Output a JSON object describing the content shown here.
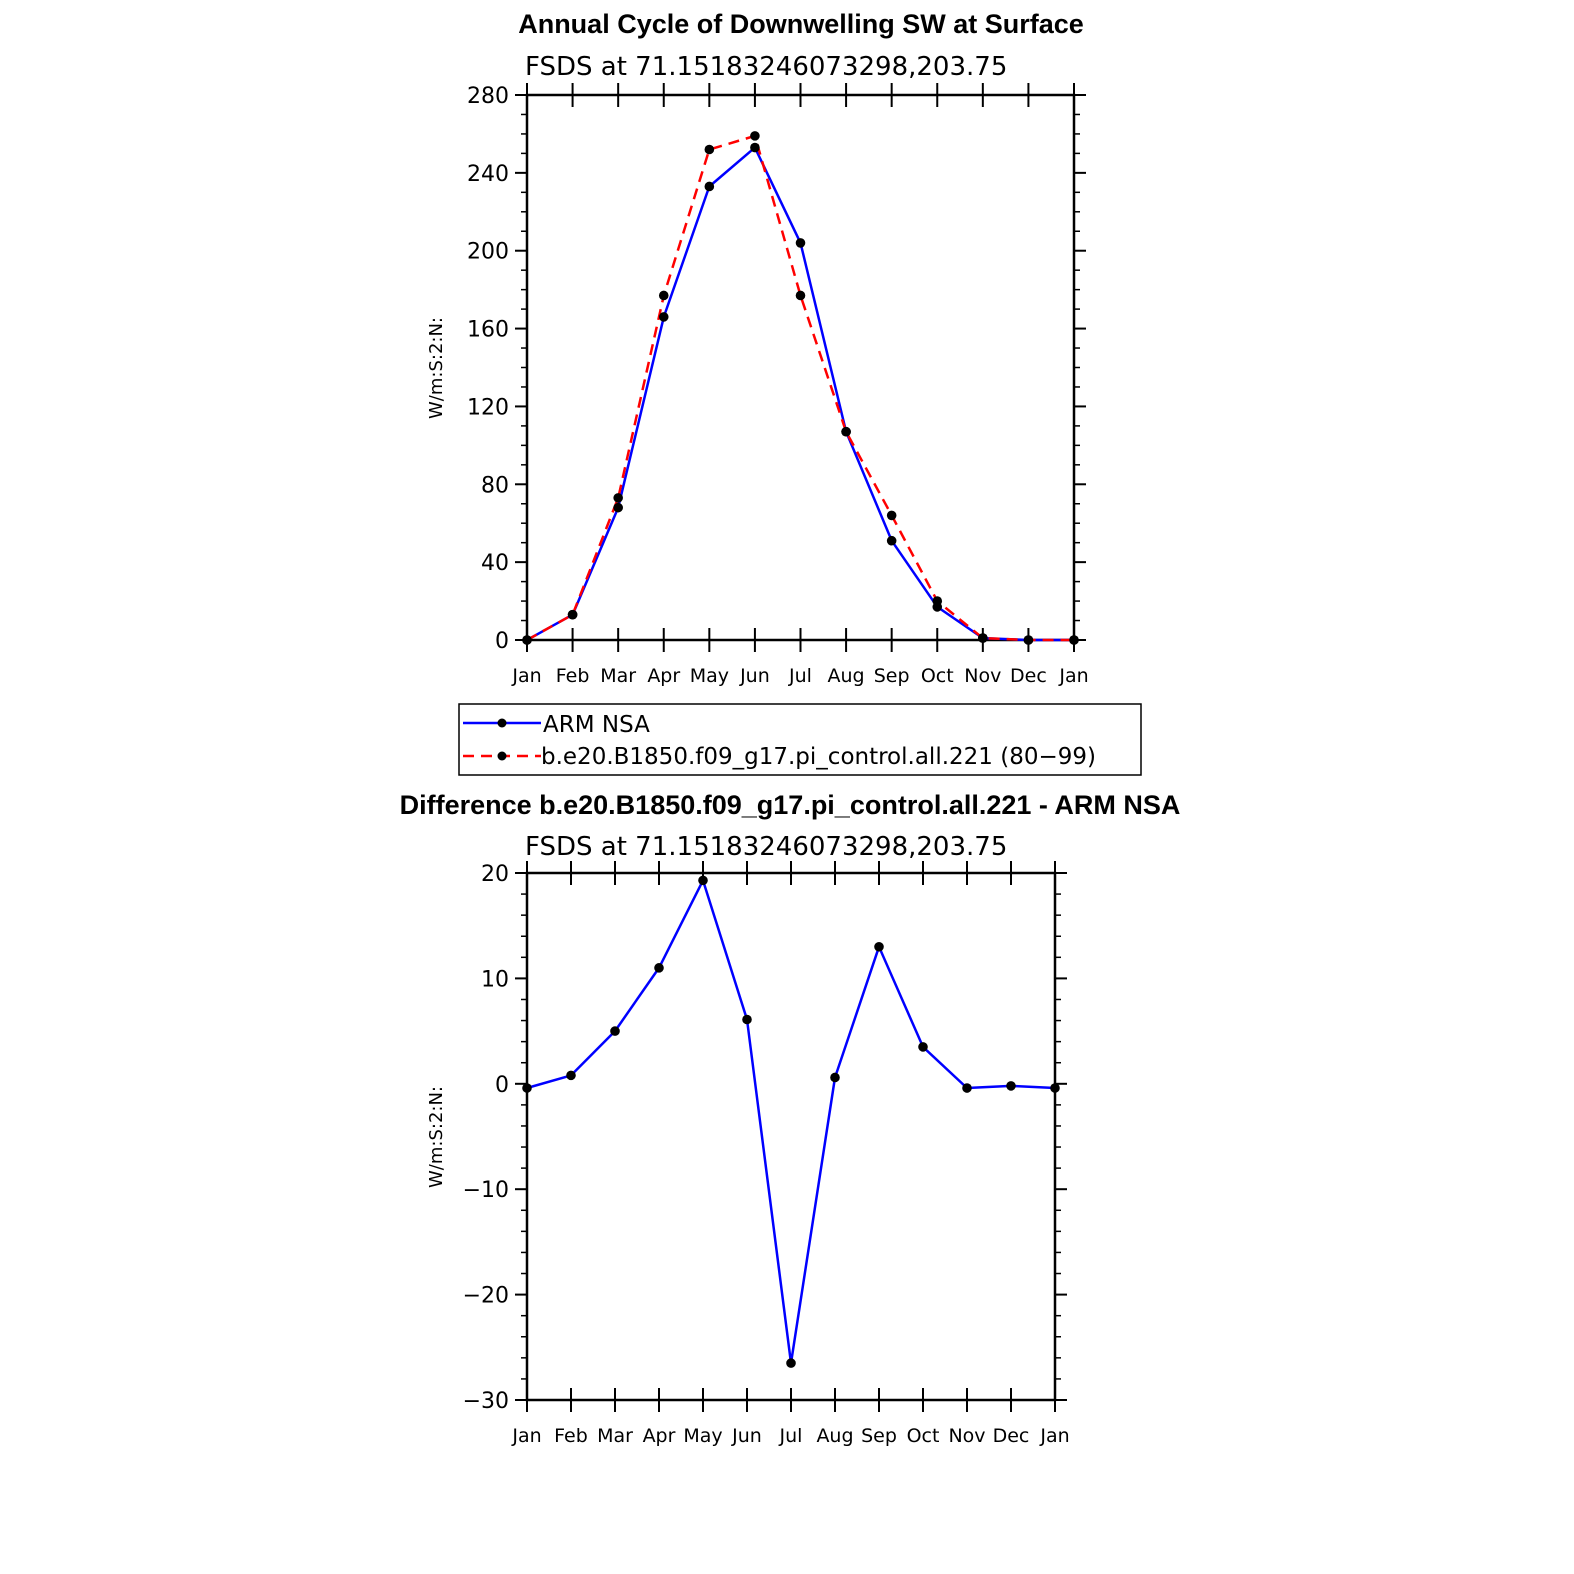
{
  "chart_data": [
    {
      "type": "line",
      "title": "Annual Cycle of Downwelling SW at Surface",
      "subtitle": "FSDS at 71.15183246073298,203.75",
      "ylabel": "W/m:S:2:N:",
      "xlabel": "",
      "ylim": [
        0,
        280
      ],
      "yticks": [
        "0",
        "40",
        "80",
        "120",
        "160",
        "200",
        "240",
        "280"
      ],
      "y_minor_step": 10,
      "categories": [
        "Jan",
        "Feb",
        "Mar",
        "Apr",
        "May",
        "Jun",
        "Jul",
        "Aug",
        "Sep",
        "Oct",
        "Nov",
        "Dec",
        "Jan"
      ],
      "grid": false,
      "legend_position": "bottom",
      "series": [
        {
          "name": "ARM NSA",
          "color": "#0000ff",
          "dash": "solid",
          "values": [
            0,
            13,
            68,
            166,
            233,
            253,
            204,
            107,
            51,
            17,
            1,
            0,
            0
          ]
        },
        {
          "name": "b.e20.B1850.f09_g17.pi_control.all.221 (80−99)",
          "color": "#ff0000",
          "dash": "dashed",
          "values": [
            0,
            13,
            73,
            177,
            252,
            259,
            177,
            107,
            64,
            20,
            1,
            0,
            0
          ]
        }
      ]
    },
    {
      "type": "line",
      "title": "Difference b.e20.B1850.f09_g17.pi_control.all.221 - ARM NSA",
      "subtitle": "FSDS at 71.15183246073298,203.75",
      "ylabel": "W/m:S:2:N:",
      "xlabel": "",
      "ylim": [
        -30,
        20
      ],
      "yticks": [
        "−30",
        "−20",
        "−10",
        "0",
        "10",
        "20"
      ],
      "y_minor_step": 2,
      "categories": [
        "Jan",
        "Feb",
        "Mar",
        "Apr",
        "May",
        "Jun",
        "Jul",
        "Aug",
        "Sep",
        "Oct",
        "Nov",
        "Dec",
        "Jan"
      ],
      "grid": false,
      "series": [
        {
          "color": "#0000ff",
          "dash": "solid",
          "values": [
            -0.4,
            0.8,
            5.0,
            11.0,
            19.3,
            6.1,
            -26.5,
            0.6,
            13.0,
            3.5,
            -0.4,
            -0.2,
            -0.4
          ]
        }
      ]
    }
  ]
}
